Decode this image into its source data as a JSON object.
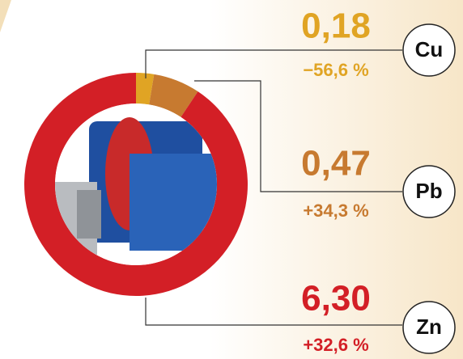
{
  "chart_data": {
    "type": "pie",
    "categories": [
      "Cu",
      "Pb",
      "Zn"
    ],
    "values": [
      0.18,
      0.47,
      6.3
    ],
    "value_labels": [
      "0,18",
      "0,47",
      "6,30"
    ],
    "change_labels": [
      "−56,6 %",
      "+34,3 %",
      "+32,6 %"
    ],
    "colors": [
      "#e0a424",
      "#c77a30",
      "#d31f26"
    ]
  }
}
